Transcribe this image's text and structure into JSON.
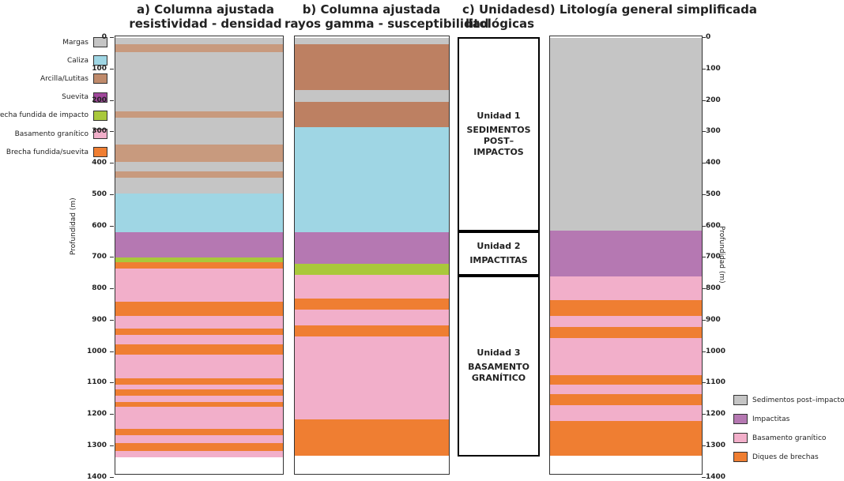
{
  "colors": {
    "margas": "#c5c5c5",
    "caliza": "#9fd6e4",
    "arcilla": "#c89a7e",
    "arcilla_dark": "#bd8062",
    "suevita": "#b578b2",
    "brecha_impacto": "#a9c83b",
    "basamento": "#f2afca",
    "brecha_suevita": "#ef7e32"
  },
  "titles": {
    "a": [
      "a) Columna ajustada",
      "resistividad - densidad"
    ],
    "b": [
      "b) Columna ajustada",
      "rayos gamma - susceptibilidad"
    ],
    "c": [
      "c) Unidades",
      "litológicas"
    ],
    "d": [
      "d) Litología general simplificada"
    ]
  },
  "axis": {
    "ylabel_left": "Profundidad (m)",
    "ylabel_right": "Profundidad (m)",
    "ticks": [
      "0",
      "100",
      "200",
      "300",
      "400",
      "500",
      "600",
      "700",
      "800",
      "900",
      "1000",
      "1100",
      "1200",
      "1300",
      "1400"
    ]
  },
  "legend_left": [
    {
      "label": "Margas",
      "color": "#c5c5c5"
    },
    {
      "label": "Caliza",
      "color": "#9fd6e4"
    },
    {
      "label": "Arcilla/Lutitas",
      "color": "#c08b6c"
    },
    {
      "label": "Suevita",
      "color": "#a0479b"
    },
    {
      "label": "Brecha fundida de impacto",
      "color": "#a9c83b"
    },
    {
      "label": "Basamento granítico",
      "color": "#f2afca"
    },
    {
      "label": "Brecha fundida/suevita",
      "color": "#ef7e32"
    }
  ],
  "legend_right": [
    {
      "label": "Sedimentos post–impactos",
      "color": "#c5c5c5"
    },
    {
      "label": "Impactitas",
      "color": "#b578b2"
    },
    {
      "label": "Basamento granítico",
      "color": "#f2afca"
    },
    {
      "label": "Diques de brechas",
      "color": "#ef7e32"
    }
  ],
  "units": [
    {
      "title": "Unidad 1",
      "desc": "SEDIMENTOS POST–IMPACTOS",
      "top": 0,
      "bottom": 620
    },
    {
      "title": "Unidad 2",
      "desc": "IMPACTITAS",
      "top": 620,
      "bottom": 760
    },
    {
      "title": "Unidad 3",
      "desc": "BASAMENTO GRANÍTICO",
      "top": 760,
      "bottom": 1335
    }
  ],
  "columns": {
    "a": [
      {
        "top": 0,
        "bottom": 20,
        "type": "margas"
      },
      {
        "top": 20,
        "bottom": 45,
        "type": "arcilla"
      },
      {
        "top": 45,
        "bottom": 235,
        "type": "margas"
      },
      {
        "top": 235,
        "bottom": 255,
        "type": "arcilla"
      },
      {
        "top": 255,
        "bottom": 340,
        "type": "margas"
      },
      {
        "top": 340,
        "bottom": 395,
        "type": "arcilla"
      },
      {
        "top": 395,
        "bottom": 425,
        "type": "margas"
      },
      {
        "top": 425,
        "bottom": 445,
        "type": "arcilla"
      },
      {
        "top": 445,
        "bottom": 495,
        "type": "margas"
      },
      {
        "top": 495,
        "bottom": 620,
        "type": "caliza"
      },
      {
        "top": 620,
        "bottom": 700,
        "type": "suevita"
      },
      {
        "top": 700,
        "bottom": 715,
        "type": "brecha_impacto"
      },
      {
        "top": 715,
        "bottom": 735,
        "type": "brecha_suevita"
      },
      {
        "top": 735,
        "bottom": 840,
        "type": "basamento"
      },
      {
        "top": 840,
        "bottom": 885,
        "type": "brecha_suevita"
      },
      {
        "top": 885,
        "bottom": 925,
        "type": "basamento"
      },
      {
        "top": 925,
        "bottom": 945,
        "type": "brecha_suevita"
      },
      {
        "top": 945,
        "bottom": 975,
        "type": "basamento"
      },
      {
        "top": 975,
        "bottom": 1010,
        "type": "brecha_suevita"
      },
      {
        "top": 1010,
        "bottom": 1085,
        "type": "basamento"
      },
      {
        "top": 1085,
        "bottom": 1105,
        "type": "brecha_suevita"
      },
      {
        "top": 1105,
        "bottom": 1120,
        "type": "basamento"
      },
      {
        "top": 1120,
        "bottom": 1140,
        "type": "brecha_suevita"
      },
      {
        "top": 1140,
        "bottom": 1160,
        "type": "basamento"
      },
      {
        "top": 1160,
        "bottom": 1175,
        "type": "brecha_suevita"
      },
      {
        "top": 1175,
        "bottom": 1245,
        "type": "basamento"
      },
      {
        "top": 1245,
        "bottom": 1265,
        "type": "brecha_suevita"
      },
      {
        "top": 1265,
        "bottom": 1290,
        "type": "basamento"
      },
      {
        "top": 1290,
        "bottom": 1315,
        "type": "brecha_suevita"
      },
      {
        "top": 1315,
        "bottom": 1335,
        "type": "basamento"
      }
    ],
    "b": [
      {
        "top": 0,
        "bottom": 20,
        "type": "margas"
      },
      {
        "top": 20,
        "bottom": 165,
        "type": "arcilla_dark"
      },
      {
        "top": 165,
        "bottom": 205,
        "type": "margas"
      },
      {
        "top": 205,
        "bottom": 285,
        "type": "arcilla_dark"
      },
      {
        "top": 285,
        "bottom": 620,
        "type": "caliza"
      },
      {
        "top": 620,
        "bottom": 720,
        "type": "suevita"
      },
      {
        "top": 720,
        "bottom": 755,
        "type": "brecha_impacto"
      },
      {
        "top": 755,
        "bottom": 830,
        "type": "basamento"
      },
      {
        "top": 830,
        "bottom": 865,
        "type": "brecha_suevita"
      },
      {
        "top": 865,
        "bottom": 915,
        "type": "basamento"
      },
      {
        "top": 915,
        "bottom": 950,
        "type": "brecha_suevita"
      },
      {
        "top": 950,
        "bottom": 1215,
        "type": "basamento"
      },
      {
        "top": 1215,
        "bottom": 1330,
        "type": "brecha_suevita"
      }
    ],
    "d": [
      {
        "top": 0,
        "bottom": 615,
        "type": "margas"
      },
      {
        "top": 615,
        "bottom": 760,
        "type": "suevita"
      },
      {
        "top": 760,
        "bottom": 835,
        "type": "basamento"
      },
      {
        "top": 835,
        "bottom": 885,
        "type": "brecha_suevita"
      },
      {
        "top": 885,
        "bottom": 920,
        "type": "basamento"
      },
      {
        "top": 920,
        "bottom": 955,
        "type": "brecha_suevita"
      },
      {
        "top": 955,
        "bottom": 1075,
        "type": "basamento"
      },
      {
        "top": 1075,
        "bottom": 1105,
        "type": "brecha_suevita"
      },
      {
        "top": 1105,
        "bottom": 1135,
        "type": "basamento"
      },
      {
        "top": 1135,
        "bottom": 1170,
        "type": "brecha_suevita"
      },
      {
        "top": 1170,
        "bottom": 1220,
        "type": "basamento"
      },
      {
        "top": 1220,
        "bottom": 1330,
        "type": "brecha_suevita"
      }
    ]
  }
}
